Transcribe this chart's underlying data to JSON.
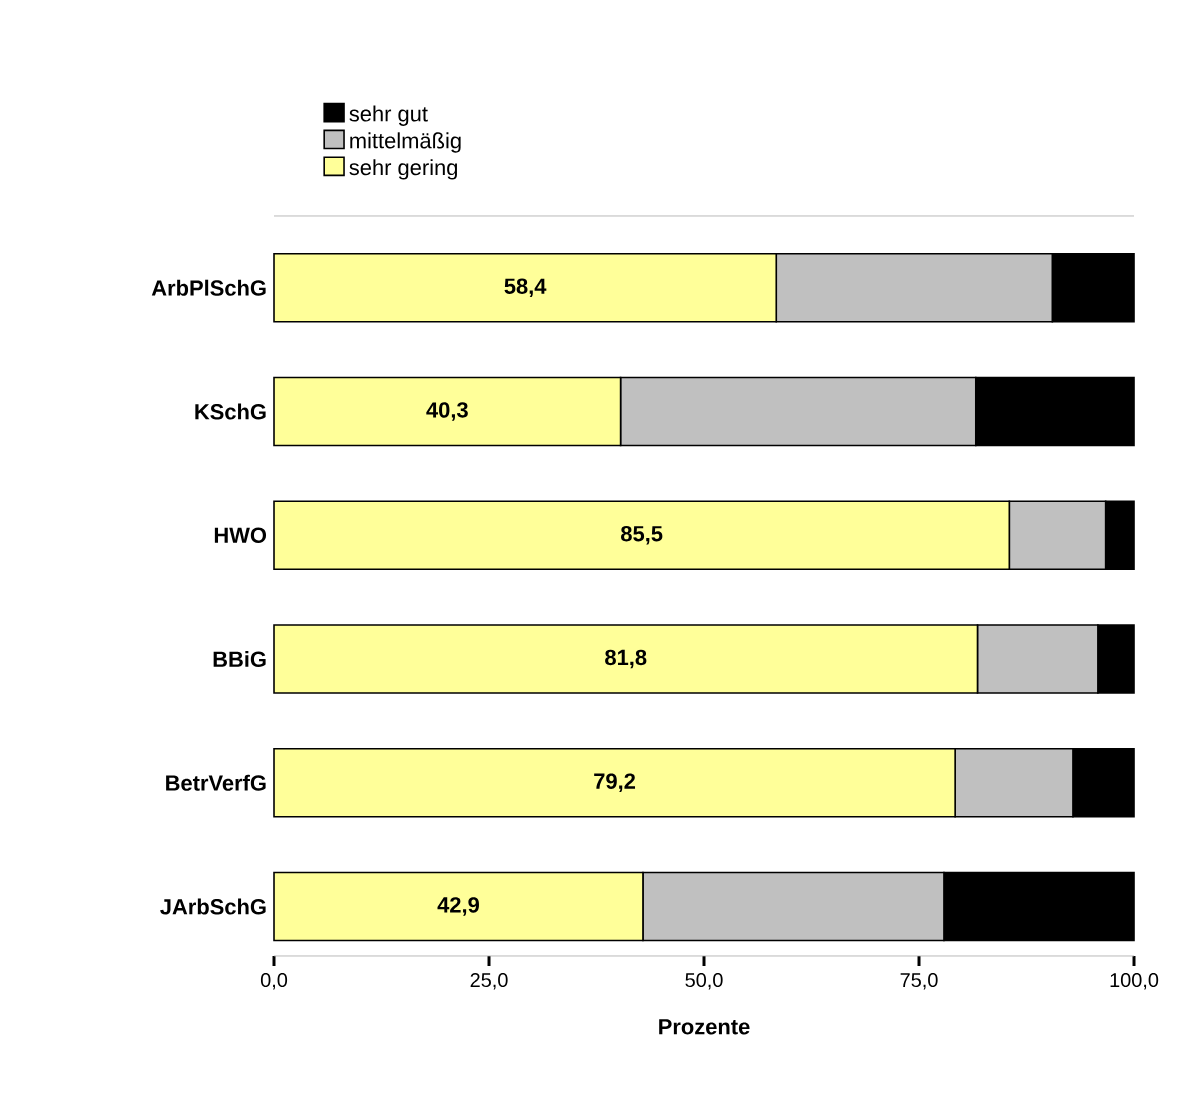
{
  "chart_data": {
    "type": "bar",
    "orientation": "horizontal",
    "stacked": true,
    "categories": [
      "ArbPlSchG",
      "KSchG",
      "HWO",
      "BBiG",
      "BetrVerfG",
      "JArbSchG"
    ],
    "series": [
      {
        "name": "sehr gering",
        "color": "#ffff99",
        "values": [
          58.4,
          40.3,
          85.5,
          81.8,
          79.2,
          42.9
        ],
        "value_labels": [
          "58,4",
          "40,3",
          "85,5",
          "81,8",
          "79,2",
          "42,9"
        ]
      },
      {
        "name": "mittelmäßig",
        "color": "#c0c0c0",
        "values": [
          32.1,
          41.3,
          11.2,
          14.0,
          13.7,
          35.0
        ]
      },
      {
        "name": "sehr gut",
        "color": "#000000",
        "values": [
          9.5,
          18.4,
          3.3,
          4.2,
          7.1,
          22.1
        ]
      }
    ],
    "xlabel": "Prozente",
    "xlim": [
      0,
      100
    ],
    "xticks": [
      {
        "value": 0,
        "label": "0,0"
      },
      {
        "value": 25,
        "label": "25,0"
      },
      {
        "value": 50,
        "label": "50,0"
      },
      {
        "value": 75,
        "label": "75,0"
      },
      {
        "value": 100,
        "label": "100,0"
      }
    ],
    "grid": false,
    "legend": "top"
  }
}
